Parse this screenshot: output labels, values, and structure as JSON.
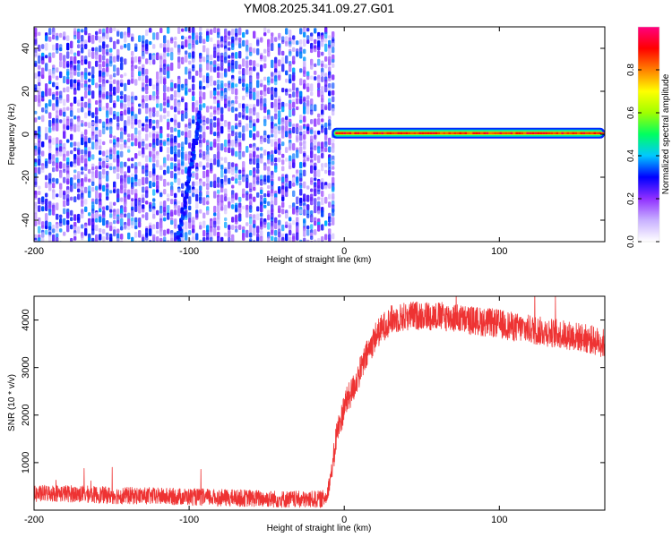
{
  "figure": {
    "title": "YM08.2025.341.09.27.G01"
  },
  "chart_data": [
    {
      "type": "heatmap",
      "title": "",
      "xlabel": "Height of straight line (km)",
      "ylabel": "Frequency (Hz)",
      "xlim": [
        -200,
        168
      ],
      "ylim": [
        -50,
        50
      ],
      "x_ticks": [
        "-200",
        "-100",
        "0",
        "100"
      ],
      "y_ticks": [
        "-40",
        "-20",
        "0",
        "20",
        "40"
      ],
      "colorbar": {
        "label": "Normalized spectral amplitude",
        "range": [
          0.0,
          1.0
        ],
        "ticks": [
          "0.0",
          "0.2",
          "0.4",
          "0.6",
          "0.8"
        ],
        "colormap": [
          "#ffffff",
          "#c8b0ff",
          "#9030ff",
          "#0000ff",
          "#00c8ff",
          "#00ff60",
          "#a0ff00",
          "#ffff00",
          "#ff8000",
          "#ff0000",
          "#ff0080"
        ]
      },
      "features": {
        "noise_region_x": [
          -200,
          -8
        ],
        "noise_amplitude": 0.15,
        "diagonal_streak": {
          "from": [
            -107,
            -50
          ],
          "to": [
            -93,
            10
          ]
        },
        "carrier_line": {
          "x": [
            -8,
            168
          ],
          "frequency": 0.5,
          "peak_amplitude": 0.95
        }
      }
    },
    {
      "type": "line",
      "title": "",
      "xlabel": "Height of straight line (km)",
      "ylabel": "SNR (10 * v/v)",
      "xlim": [
        -200,
        168
      ],
      "ylim": [
        0,
        4500
      ],
      "x_ticks": [
        "-200",
        "-100",
        "0",
        "100"
      ],
      "y_ticks": [
        "1000",
        "2000",
        "3000",
        "4000"
      ],
      "grid": false,
      "series": [
        {
          "color": "#ee3333",
          "x": [
            -200,
            -190,
            -170,
            -150,
            -130,
            -100,
            -80,
            -60,
            -40,
            -25,
            -15,
            -12,
            -10,
            -7,
            -5,
            -2,
            0,
            5,
            10,
            15,
            20,
            25,
            30,
            40,
            50,
            60,
            70,
            80,
            90,
            100,
            110,
            120,
            130,
            140,
            150,
            160,
            168
          ],
          "y": [
            330,
            360,
            340,
            310,
            300,
            280,
            260,
            250,
            230,
            220,
            230,
            260,
            500,
            1000,
            1600,
            1900,
            2200,
            2500,
            2900,
            3300,
            3650,
            3850,
            4000,
            4080,
            4100,
            4080,
            4050,
            4000,
            3960,
            3920,
            3850,
            3800,
            3750,
            3700,
            3650,
            3580,
            3500
          ],
          "noise_amplitude": 180
        }
      ]
    }
  ]
}
